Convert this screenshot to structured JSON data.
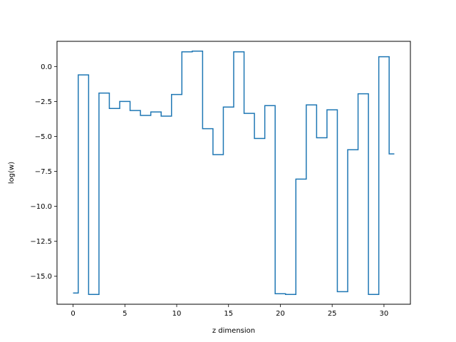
{
  "chart_data": {
    "type": "line",
    "step": "mid",
    "title": "",
    "xlabel": "z dimension",
    "ylabel": "log(w)",
    "xlim": [
      -1.55,
      32.55
    ],
    "ylim": [
      -17.0,
      1.8
    ],
    "xticks": [
      0,
      5,
      10,
      15,
      20,
      25,
      30
    ],
    "xtick_labels": [
      "0",
      "5",
      "10",
      "15",
      "20",
      "25",
      "30"
    ],
    "yticks": [
      0.0,
      -2.5,
      -5.0,
      -7.5,
      -10.0,
      -12.5,
      -15.0
    ],
    "ytick_labels": [
      "0.0",
      "−2.5",
      "−5.0",
      "−7.5",
      "−10.0",
      "−12.5",
      "−15.0"
    ],
    "grid": false,
    "color": "#1f77b4",
    "series": [
      {
        "x": [
          0,
          1,
          2,
          3,
          4,
          5,
          6,
          7,
          8,
          9,
          10,
          11,
          12,
          13,
          14,
          15,
          16,
          17,
          18,
          19,
          20,
          21,
          22,
          23,
          24,
          25,
          26,
          27,
          28,
          29,
          30,
          31
        ],
        "values": [
          -16.2,
          -0.6,
          -16.3,
          -1.9,
          -3.0,
          -2.5,
          -3.15,
          -3.5,
          -3.25,
          -3.55,
          -2.0,
          1.05,
          1.1,
          -4.45,
          -6.3,
          -2.9,
          1.05,
          -3.35,
          -5.15,
          -2.8,
          -16.25,
          -16.3,
          -8.05,
          -2.75,
          -5.1,
          -3.1,
          -16.1,
          -5.95,
          -1.95,
          -16.3,
          0.7,
          -6.25
        ]
      }
    ]
  }
}
